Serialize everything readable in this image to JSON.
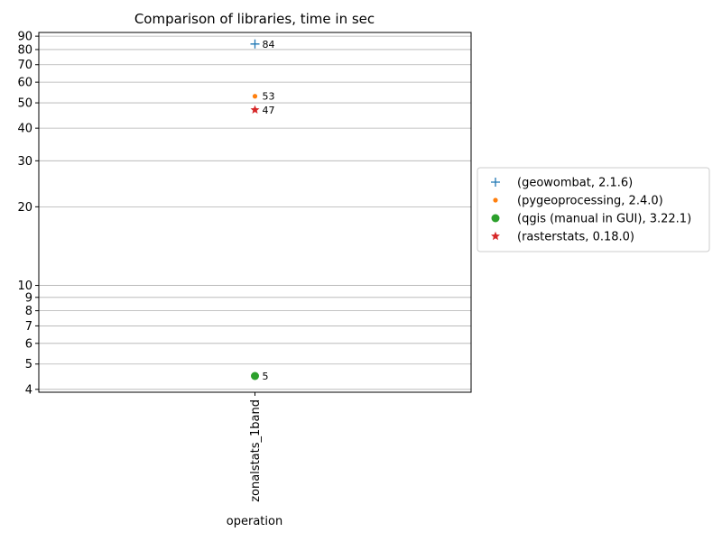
{
  "chart_data": {
    "type": "scatter",
    "title": "Comparison of libraries, time in sec",
    "xlabel": "operation",
    "ylabel": "",
    "y_scale": "log",
    "ylim": [
      3.9,
      93
    ],
    "categories": [
      "zonalstats_1band"
    ],
    "y_ticks": [
      4,
      5,
      6,
      7,
      8,
      9,
      10,
      20,
      30,
      40,
      50,
      60,
      70,
      80,
      90
    ],
    "y_tick_labels": [
      "4",
      "5",
      "6",
      "7",
      "8",
      "9",
      "10",
      "20",
      "30",
      "40",
      "50",
      "60",
      "70",
      "80",
      "90"
    ],
    "grid": "y",
    "legend_placement": "outside-right",
    "series": [
      {
        "name": "(geowombat, 2.1.6)",
        "values": [
          84
        ],
        "labels": [
          "84"
        ],
        "marker": "plus",
        "color": "#1f77b4"
      },
      {
        "name": "(pygeoprocessing, 2.4.0)",
        "values": [
          53
        ],
        "labels": [
          "53"
        ],
        "marker": "small-dot",
        "color": "#ff7f0e"
      },
      {
        "name": "(qgis (manual in GUI), 3.22.1)",
        "values": [
          4.5
        ],
        "labels": [
          "5"
        ],
        "marker": "circle",
        "color": "#2ca02c"
      },
      {
        "name": "(rasterstats, 0.18.0)",
        "values": [
          47
        ],
        "labels": [
          "47"
        ],
        "marker": "star",
        "color": "#d62728"
      }
    ]
  }
}
